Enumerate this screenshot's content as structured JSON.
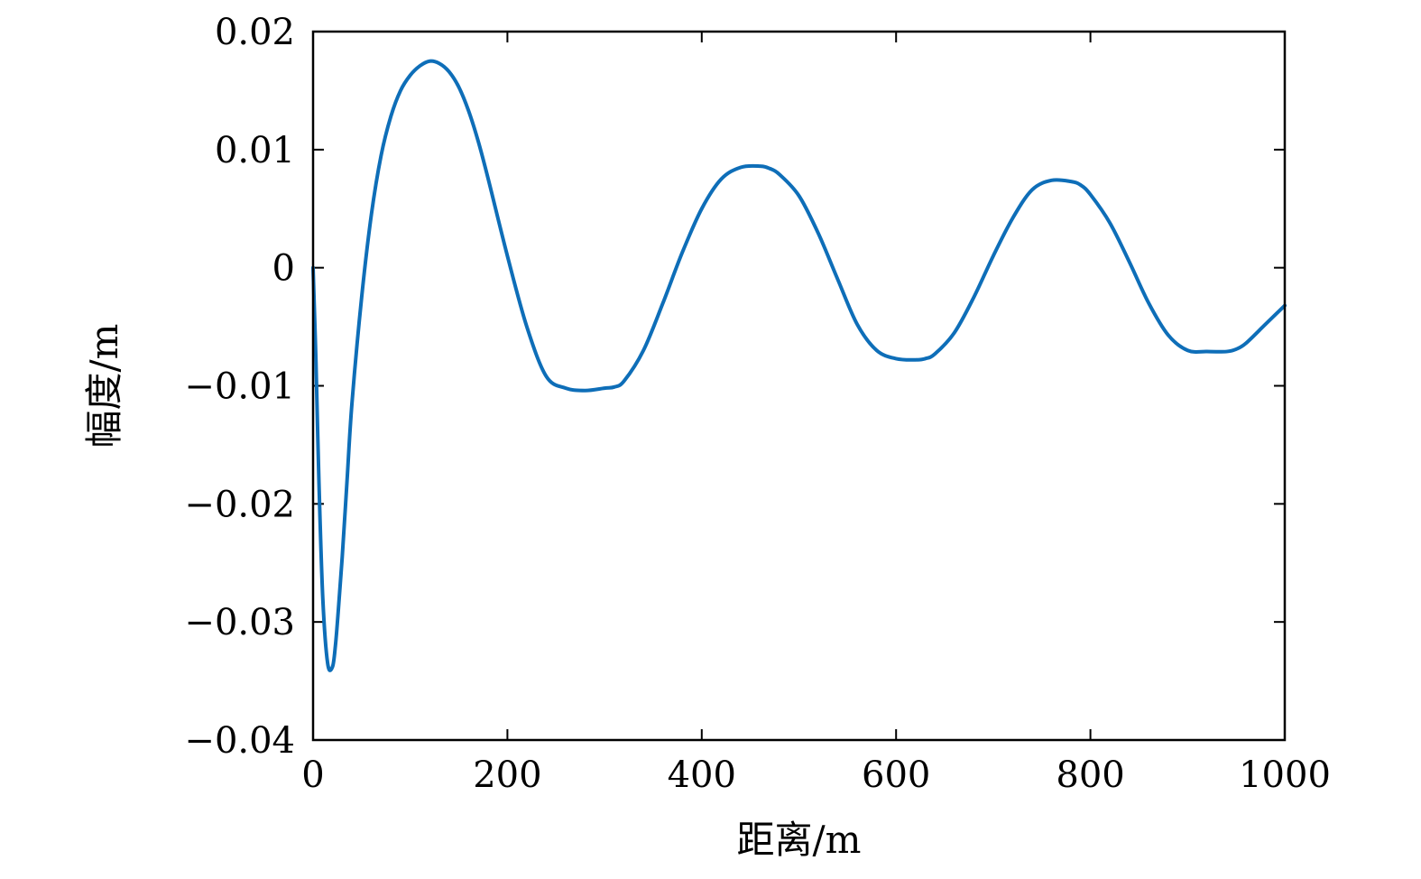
{
  "chart_data": {
    "type": "line",
    "title": "",
    "xlabel": "距离/m",
    "ylabel": "幅度/m",
    "xlim": [
      0,
      1000
    ],
    "ylim": [
      -0.04,
      0.02
    ],
    "xticks": [
      0,
      200,
      400,
      600,
      800,
      1000
    ],
    "xtick_labels": [
      "0",
      "200",
      "400",
      "600",
      "800",
      "1000"
    ],
    "yticks": [
      0.02,
      0.01,
      0,
      -0.01,
      -0.02,
      -0.03,
      -0.04
    ],
    "ytick_labels": [
      "0.02",
      "0.01",
      "0",
      "−0.01",
      "−0.02",
      "−0.03",
      "−0.04"
    ],
    "grid": false,
    "legend": "none",
    "series": [
      {
        "color": "#0e6eb8",
        "x": [
          0,
          3,
          6,
          10,
          15,
          20,
          23,
          26,
          30,
          35,
          40,
          50,
          60,
          70,
          80,
          90,
          100,
          110,
          120,
          130,
          140,
          150,
          160,
          170,
          180,
          200,
          220,
          240,
          260,
          280,
          300,
          310,
          320,
          340,
          360,
          380,
          400,
          420,
          440,
          460,
          470,
          480,
          500,
          520,
          540,
          560,
          580,
          600,
          620,
          630,
          640,
          660,
          680,
          700,
          720,
          740,
          760,
          780,
          790,
          800,
          820,
          840,
          860,
          880,
          900,
          920,
          940,
          950,
          960,
          980,
          1000
        ],
        "y": [
          0.0,
          -0.008,
          -0.018,
          -0.028,
          -0.0335,
          -0.0338,
          -0.032,
          -0.029,
          -0.0245,
          -0.018,
          -0.0115,
          -0.0025,
          0.0045,
          0.0095,
          0.0128,
          0.015,
          0.0163,
          0.0171,
          0.0175,
          0.0173,
          0.0166,
          0.0153,
          0.0133,
          0.0107,
          0.0076,
          0.001,
          -0.005,
          -0.0092,
          -0.0102,
          -0.0104,
          -0.0102,
          -0.0101,
          -0.0096,
          -0.007,
          -0.003,
          0.0013,
          0.005,
          0.0075,
          0.0085,
          0.0086,
          0.0084,
          0.0079,
          0.0061,
          0.0029,
          -0.001,
          -0.0048,
          -0.007,
          -0.0077,
          -0.0078,
          -0.0077,
          -0.0073,
          -0.0055,
          -0.0025,
          0.001,
          0.0042,
          0.0066,
          0.0074,
          0.0073,
          0.007,
          0.0062,
          0.0038,
          0.0005,
          -0.003,
          -0.0057,
          -0.007,
          -0.0071,
          -0.0071,
          -0.0069,
          -0.0064,
          -0.0048,
          -0.0032
        ]
      }
    ]
  }
}
